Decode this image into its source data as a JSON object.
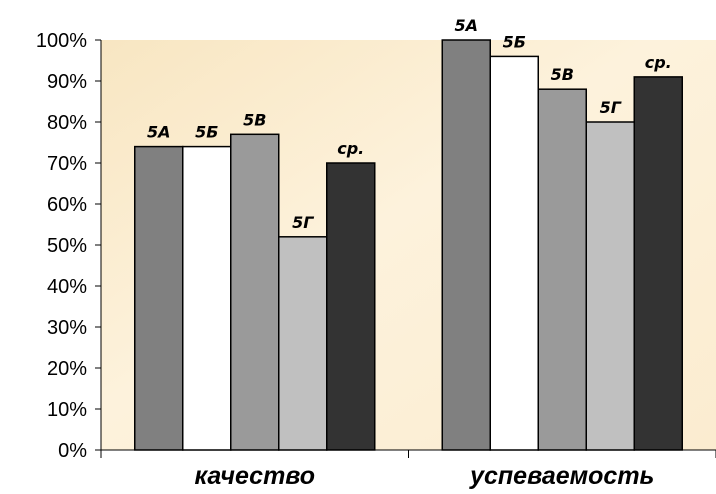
{
  "chart_data": {
    "type": "bar",
    "categories": [
      "качество",
      "успеваемость"
    ],
    "series": [
      {
        "name": "5А",
        "values": [
          74,
          100
        ],
        "color": "#808080"
      },
      {
        "name": "5Б",
        "values": [
          74,
          96
        ],
        "color": "#ffffff"
      },
      {
        "name": "5В",
        "values": [
          77,
          88
        ],
        "color": "#9a9a9a"
      },
      {
        "name": "5Г",
        "values": [
          52,
          80
        ],
        "color": "#c0c0c0"
      },
      {
        "name": "ср.",
        "values": [
          70,
          91
        ],
        "color": "#333333"
      }
    ],
    "ylim": [
      0,
      100
    ],
    "yticks": [
      0,
      10,
      20,
      30,
      40,
      50,
      60,
      70,
      80,
      90,
      100
    ],
    "ytick_format": "percent",
    "title": "",
    "xlabel": "",
    "ylabel": "",
    "grid": false,
    "legend": "none",
    "plot_background": "parchment"
  }
}
